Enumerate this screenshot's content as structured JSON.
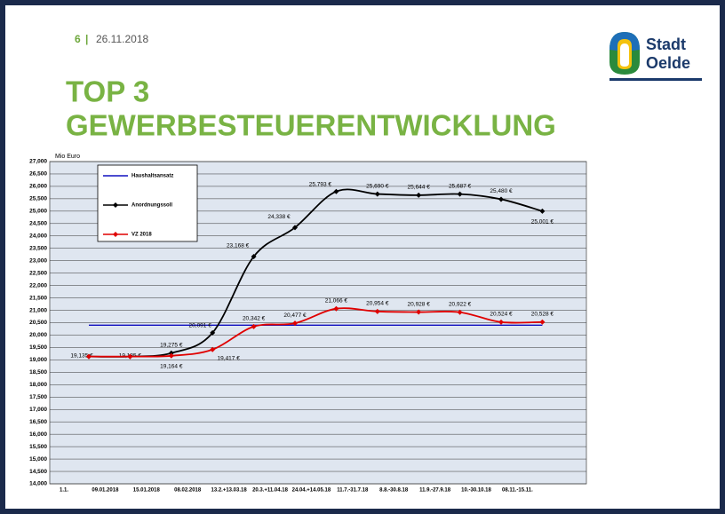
{
  "slide": {
    "page_number": "6",
    "separator": "|",
    "date": "26.11.2018",
    "title_line1": "TOP 3",
    "title_line2": "GEWERBESTEUERENTWICKLUNG",
    "logo_line1": "Stadt",
    "logo_line2": "Oelde"
  },
  "chart_data": {
    "type": "line",
    "y_label": "Mio Euro",
    "categories": [
      "1.1.",
      "09.01.2018",
      "15.01.2018",
      "08.02.2018",
      "13.2.+13.03.18",
      "20.3.+11.04.18",
      "24.04.+14.05.18",
      "11.7.-31.7.18",
      "8.8.-30.8.18",
      "11.9.-27.9.18",
      "10.-30.10.18",
      "08.11.-15.11."
    ],
    "series": [
      {
        "name": "Haushaltsansatz",
        "color": "#1010c0",
        "values": [
          20.4,
          20.4,
          20.4,
          20.4,
          20.4,
          20.4,
          20.4,
          20.4,
          20.4,
          20.4,
          20.4,
          20.4
        ]
      },
      {
        "name": "Anordnungssoll",
        "color": "#000000",
        "values": [
          19.135,
          19.135,
          19.275,
          20.091,
          23.168,
          24.338,
          25.793,
          25.69,
          25.644,
          25.687,
          25.48,
          25.001
        ],
        "value_labels": [
          "19,135 €",
          "19,135 €",
          "19,275 €",
          "20,091 €",
          "23,168 €",
          "24,338 €",
          "25,793 €",
          "25,690 €",
          "25,644 €",
          "25,687 €",
          "25,480 €",
          "25,001 €"
        ]
      },
      {
        "name": "VZ 2018",
        "color": "#e00000",
        "values": [
          19.135,
          19.135,
          19.164,
          19.417,
          20.342,
          20.477,
          21.066,
          20.954,
          20.928,
          20.922,
          20.524,
          20.528
        ],
        "value_labels": [
          null,
          null,
          "19,164 €",
          "19,417 €",
          "20,342 €",
          "20,477 €",
          "21,066 €",
          "20,954 €",
          "20,928 €",
          "20,922 €",
          "20,524 €",
          "20,528 €"
        ]
      }
    ],
    "ylim": [
      14,
      27
    ],
    "yticks": [
      {
        "value": 14,
        "label": "14,000"
      },
      {
        "value": 14.5,
        "label": "14,500"
      },
      {
        "value": 15,
        "label": "15,000"
      },
      {
        "value": 15.5,
        "label": "15,500"
      },
      {
        "value": 16,
        "label": "16,000"
      },
      {
        "value": 16.5,
        "label": "16,500"
      },
      {
        "value": 17,
        "label": "17,000"
      },
      {
        "value": 17.5,
        "label": "17,500"
      },
      {
        "value": 18,
        "label": "18,000"
      },
      {
        "value": 18.5,
        "label": "18,500"
      },
      {
        "value": 19,
        "label": "19,000"
      },
      {
        "value": 19.5,
        "label": "19,500"
      },
      {
        "value": 20,
        "label": "20,000"
      },
      {
        "value": 20.5,
        "label": "20,500"
      },
      {
        "value": 21,
        "label": "21,000"
      },
      {
        "value": 21.5,
        "label": "21,500"
      },
      {
        "value": 22,
        "label": "22,000"
      },
      {
        "value": 22.5,
        "label": "22,500"
      },
      {
        "value": 23,
        "label": "23,000"
      },
      {
        "value": 23.5,
        "label": "23,500"
      },
      {
        "value": 24,
        "label": "24,000"
      },
      {
        "value": 24.5,
        "label": "24,500"
      },
      {
        "value": 25,
        "label": "25,000"
      },
      {
        "value": 25.5,
        "label": "25,500"
      },
      {
        "value": 26,
        "label": "26,000"
      },
      {
        "value": 26.5,
        "label": "26,500"
      },
      {
        "value": 27,
        "label": "27,000"
      }
    ],
    "grid": true,
    "legend": "upper left",
    "plot_background": "#dfe6f0"
  }
}
